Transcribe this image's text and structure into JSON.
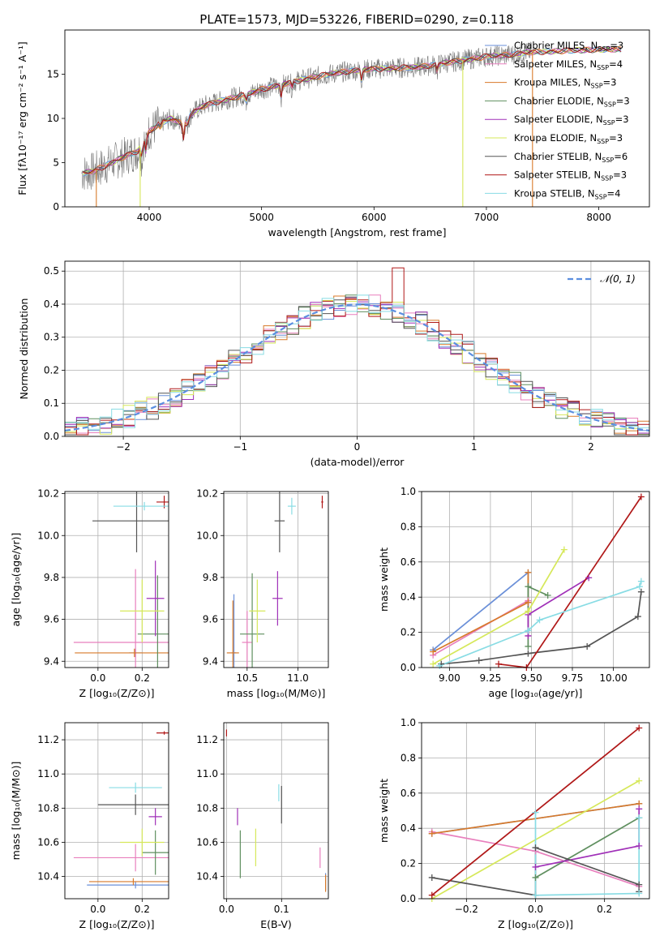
{
  "figure_title": "PLATE=1573, MJD=53226, FIBERID=0290, z=0.118",
  "colors": {
    "Chabrier MILES": "#6a8fd8",
    "Salpeter MILES": "#e87fbd",
    "Kroupa MILES": "#d87a2a",
    "Chabrier ELODIE": "#5f8f5f",
    "Salpeter ELODIE": "#a030b8",
    "Kroupa ELODIE": "#d6e85a",
    "Chabrier STELIB": "#555555",
    "Salpeter STELIB": "#b01818",
    "Kroupa STELIB": "#88dce4"
  },
  "chart_data": [
    {
      "type": "line",
      "id": "spectrum",
      "xlabel": "wavelength [Angstrom, rest frame]",
      "ylabel": "Flux [fλ10⁻¹⁷ erg cm⁻² s⁻¹ A⁻¹]",
      "xlim": [
        3250,
        8450
      ],
      "ylim": [
        0,
        20
      ],
      "xticks": [
        "4000",
        "5000",
        "6000",
        "7000",
        "8000"
      ],
      "yticks": [
        "0",
        "5",
        "10",
        "15"
      ],
      "legend_position": "right",
      "legend": [
        {
          "model": "Chabrier MILES",
          "label": "Chabrier MILES, N",
          "sub": "SSP",
          "val": "=3"
        },
        {
          "model": "Salpeter MILES",
          "label": "Salpeter MILES, N",
          "sub": "SSP",
          "val": "=4"
        },
        {
          "model": "Kroupa MILES",
          "label": "Kroupa MILES, N",
          "sub": "SSP",
          "val": "=3"
        },
        {
          "model": "Chabrier ELODIE",
          "label": "Chabrier ELODIE, N",
          "sub": "SSP",
          "val": "=3"
        },
        {
          "model": "Salpeter ELODIE",
          "label": "Salpeter ELODIE, N",
          "sub": "SSP",
          "val": "=3"
        },
        {
          "model": "Kroupa ELODIE",
          "label": "Kroupa ELODIE, N",
          "sub": "SSP",
          "val": "=3"
        },
        {
          "model": "Chabrier STELIB",
          "label": "Chabrier STELIB, N",
          "sub": "SSP",
          "val": "=6"
        },
        {
          "model": "Salpeter STELIB",
          "label": "Salpeter STELIB, N",
          "sub": "SSP",
          "val": "=3"
        },
        {
          "model": "Kroupa STELIB",
          "label": "Kroupa STELIB, N",
          "sub": "SSP",
          "val": "=4"
        }
      ],
      "continuum_knots": [
        [
          3400,
          3.8
        ],
        [
          3500,
          4.0
        ],
        [
          3600,
          4.6
        ],
        [
          3700,
          5.2
        ],
        [
          3800,
          5.8
        ],
        [
          3900,
          6.3
        ],
        [
          4000,
          8.5
        ],
        [
          4100,
          9.5
        ],
        [
          4200,
          10.0
        ],
        [
          4300,
          9.3
        ],
        [
          4400,
          10.8
        ],
        [
          4500,
          11.5
        ],
        [
          4700,
          12.2
        ],
        [
          4900,
          12.8
        ],
        [
          5000,
          13.3
        ],
        [
          5200,
          13.9
        ],
        [
          5400,
          14.5
        ],
        [
          5600,
          15.0
        ],
        [
          5800,
          15.4
        ],
        [
          6000,
          15.6
        ],
        [
          6200,
          15.7
        ],
        [
          6400,
          15.8
        ],
        [
          6600,
          16.2
        ],
        [
          6800,
          16.6
        ],
        [
          7000,
          17.0
        ],
        [
          7200,
          17.2
        ],
        [
          7400,
          17.5
        ],
        [
          7600,
          17.6
        ],
        [
          7800,
          17.7
        ],
        [
          8000,
          17.8
        ],
        [
          8200,
          17.8
        ]
      ],
      "absorption_lines": [
        [
          3934,
          -1.8
        ],
        [
          3969,
          -1.5
        ],
        [
          4102,
          -0.8
        ],
        [
          4304,
          -1.6
        ],
        [
          4341,
          -0.7
        ],
        [
          4861,
          -0.9
        ],
        [
          5175,
          -1.4
        ],
        [
          5270,
          -0.7
        ],
        [
          5890,
          -1.2
        ],
        [
          6563,
          -0.8
        ]
      ],
      "spikes": [
        [
          3530,
          "Kroupa MILES"
        ],
        [
          3920,
          "Kroupa ELODIE"
        ],
        [
          6790,
          "Kroupa ELODIE"
        ],
        [
          7410,
          "Kroupa MILES"
        ]
      ]
    },
    {
      "type": "bar",
      "id": "residual_histogram",
      "xlabel": "(data-model)/error",
      "ylabel": "Normed distribution",
      "xlim": [
        -2.5,
        2.5
      ],
      "ylim": [
        0,
        0.53
      ],
      "xticks": [
        "−2",
        "−1",
        "0",
        "1",
        "2"
      ],
      "yticks": [
        "0.0",
        "0.1",
        "0.2",
        "0.3",
        "0.4",
        "0.5"
      ],
      "bin_width": 0.1,
      "reference_curve": {
        "label": "𝒩(0, 1)",
        "type": "normal",
        "mean": 0,
        "sigma": 1
      },
      "legend_position": "top-right"
    },
    {
      "type": "scatter",
      "id": "age_vs_Z",
      "xlabel": "Z [log₁₀(Z/Z⊙)]",
      "ylabel": "age  [log₁₀(age/yr)]",
      "xlim": [
        -0.15,
        0.32
      ],
      "ylim": [
        9.37,
        10.21
      ],
      "xticks": [
        "0.0",
        "0.2"
      ],
      "yticks": [
        "9.4",
        "9.6",
        "9.8",
        "10.0",
        "10.2"
      ],
      "points": [
        {
          "model": "Chabrier MILES",
          "x": 0.17,
          "y": 9.44,
          "xerr": 0.03,
          "yerr": 0.02
        },
        {
          "model": "Salpeter MILES",
          "x": 0.17,
          "y": 9.49,
          "xerr": 0.28,
          "yerr": 0.35
        },
        {
          "model": "Kroupa MILES",
          "x": 0.165,
          "y": 9.44,
          "xerr": 0.27,
          "yerr": 0.02
        },
        {
          "model": "Chabrier ELODIE",
          "x": 0.27,
          "y": 9.53,
          "xerr": 0.09,
          "yerr": 0.28
        },
        {
          "model": "Salpeter ELODIE",
          "x": 0.26,
          "y": 9.7,
          "xerr": 0.04,
          "yerr": 0.18
        },
        {
          "model": "Kroupa ELODIE",
          "x": 0.2,
          "y": 9.64,
          "xerr": 0.1,
          "yerr": 0.15
        },
        {
          "model": "Chabrier STELIB",
          "x": 0.175,
          "y": 10.07,
          "xerr": 0.2,
          "yerr": 0.15
        },
        {
          "model": "Salpeter STELIB",
          "x": 0.3,
          "y": 10.16,
          "xerr": 0.035,
          "yerr": 0.03
        },
        {
          "model": "Kroupa STELIB",
          "x": 0.21,
          "y": 10.14,
          "xerr": 0.14,
          "yerr": 0.02
        }
      ]
    },
    {
      "type": "scatter",
      "id": "age_vs_mass",
      "xlabel": "mass [log₁₀(M/M⊙)]",
      "xlim": [
        10.27,
        11.3
      ],
      "ylim": [
        9.37,
        10.21
      ],
      "xticks": [
        "10.5",
        "11.0"
      ],
      "yticks": [
        "9.4",
        "9.6",
        "9.8",
        "10.0",
        "10.2"
      ],
      "points": [
        {
          "model": "Chabrier MILES",
          "x": 10.37,
          "y": 9.44,
          "xerr": 0.02,
          "yerr": 0.28
        },
        {
          "model": "Salpeter MILES",
          "x": 10.5,
          "y": 9.49,
          "xerr": 0.05,
          "yerr": 0.15
        },
        {
          "model": "Kroupa MILES",
          "x": 10.36,
          "y": 9.44,
          "xerr": 0.06,
          "yerr": 0.25
        },
        {
          "model": "Chabrier ELODIE",
          "x": 10.55,
          "y": 9.53,
          "xerr": 0.12,
          "yerr": 0.29
        },
        {
          "model": "Salpeter ELODIE",
          "x": 10.8,
          "y": 9.7,
          "xerr": 0.05,
          "yerr": 0.13
        },
        {
          "model": "Kroupa ELODIE",
          "x": 10.6,
          "y": 9.64,
          "xerr": 0.08,
          "yerr": 0.15
        },
        {
          "model": "Chabrier STELIB",
          "x": 10.82,
          "y": 10.07,
          "xerr": 0.05,
          "yerr": 0.15
        },
        {
          "model": "Salpeter STELIB",
          "x": 11.24,
          "y": 10.16,
          "xerr": 0.01,
          "yerr": 0.03
        },
        {
          "model": "Kroupa STELIB",
          "x": 10.94,
          "y": 10.14,
          "xerr": 0.04,
          "yerr": 0.04
        }
      ]
    },
    {
      "type": "line",
      "id": "weight_vs_age",
      "xlabel": "age  [log₁₀(age/yr)]",
      "ylabel": "mass weight",
      "xlim": [
        8.83,
        10.22
      ],
      "ylim": [
        0,
        1.0
      ],
      "xticks": [
        "9.00",
        "9.25",
        "9.50",
        "9.75",
        "10.00"
      ],
      "yticks": [
        "0.0",
        "0.2",
        "0.4",
        "0.6",
        "0.8",
        "1.0"
      ],
      "series": [
        {
          "model": "Chabrier MILES",
          "x": [
            8.9,
            9.48,
            9.48
          ],
          "y": [
            0.1,
            0.54,
            0.37
          ]
        },
        {
          "model": "Salpeter MILES",
          "x": [
            8.9,
            9.48,
            9.48,
            9.48
          ],
          "y": [
            0.07,
            0.38,
            0.37,
            0.18
          ]
        },
        {
          "model": "Kroupa MILES",
          "x": [
            8.9,
            9.48,
            9.48
          ],
          "y": [
            0.09,
            0.37,
            0.54
          ]
        },
        {
          "model": "Chabrier ELODIE",
          "x": [
            9.48,
            9.48,
            9.6
          ],
          "y": [
            0.12,
            0.46,
            0.41
          ]
        },
        {
          "model": "Salpeter ELODIE",
          "x": [
            9.48,
            9.48,
            9.85
          ],
          "y": [
            0.18,
            0.3,
            0.51
          ]
        },
        {
          "model": "Kroupa ELODIE",
          "x": [
            8.9,
            9.48,
            9.7
          ],
          "y": [
            0.02,
            0.32,
            0.67
          ]
        },
        {
          "model": "Chabrier STELIB",
          "x": [
            8.95,
            9.18,
            9.48,
            9.84,
            10.15,
            10.17
          ],
          "y": [
            0.02,
            0.04,
            0.08,
            0.12,
            0.29,
            0.43
          ]
        },
        {
          "model": "Salpeter STELIB",
          "x": [
            9.3,
            9.47,
            10.17
          ],
          "y": [
            0.02,
            0.0,
            0.97
          ]
        },
        {
          "model": "Kroupa STELIB",
          "x": [
            8.94,
            9.48,
            9.55,
            10.16,
            10.17
          ],
          "y": [
            0.01,
            0.21,
            0.27,
            0.46,
            0.49
          ]
        }
      ]
    },
    {
      "type": "scatter",
      "id": "mass_vs_Z",
      "xlabel": "Z [log₁₀(Z/Z⊙)]",
      "ylabel": "mass [log₁₀(M/M⊙)]",
      "xlim": [
        -0.15,
        0.32
      ],
      "ylim": [
        10.27,
        11.3
      ],
      "xticks": [
        "0.0",
        "0.2"
      ],
      "yticks": [
        "10.4",
        "10.6",
        "10.8",
        "11.0",
        "11.2"
      ],
      "points": [
        {
          "model": "Chabrier MILES",
          "x": 0.17,
          "y": 10.35,
          "xerr": 0.22,
          "yerr": 0.02
        },
        {
          "model": "Salpeter MILES",
          "x": 0.17,
          "y": 10.51,
          "xerr": 0.28,
          "yerr": 0.08
        },
        {
          "model": "Kroupa MILES",
          "x": 0.16,
          "y": 10.37,
          "xerr": 0.2,
          "yerr": 0.02
        },
        {
          "model": "Chabrier ELODIE",
          "x": 0.26,
          "y": 10.54,
          "xerr": 0.06,
          "yerr": 0.13
        },
        {
          "model": "Salpeter ELODIE",
          "x": 0.26,
          "y": 10.75,
          "xerr": 0.03,
          "yerr": 0.05
        },
        {
          "model": "Kroupa ELODIE",
          "x": 0.2,
          "y": 10.6,
          "xerr": 0.1,
          "yerr": 0.08
        },
        {
          "model": "Chabrier STELIB",
          "x": 0.17,
          "y": 10.82,
          "xerr": 0.17,
          "yerr": 0.06
        },
        {
          "model": "Salpeter STELIB",
          "x": 0.3,
          "y": 11.24,
          "xerr": 0.035,
          "yerr": 0.01
        },
        {
          "model": "Kroupa STELIB",
          "x": 0.17,
          "y": 10.92,
          "xerr": 0.12,
          "yerr": 0.03
        }
      ]
    },
    {
      "type": "scatter",
      "id": "mass_vs_ebv",
      "xlabel": "E(B-V)",
      "xlim": [
        -0.005,
        0.185
      ],
      "ylim": [
        10.27,
        11.3
      ],
      "xticks": [
        "0.0",
        "0.1"
      ],
      "yticks": [
        "10.4",
        "10.6",
        "10.8",
        "11.0",
        "11.2"
      ],
      "points": [
        {
          "model": "Chabrier MILES",
          "x": 0.18,
          "y": 10.37,
          "xerr": 0,
          "yerr": 0.05
        },
        {
          "model": "Salpeter MILES",
          "x": 0.17,
          "y": 10.51,
          "xerr": 0,
          "yerr": 0.06
        },
        {
          "model": "Kroupa MILES",
          "x": 0.18,
          "y": 10.36,
          "xerr": 0,
          "yerr": 0.05
        },
        {
          "model": "Chabrier ELODIE",
          "x": 0.025,
          "y": 10.53,
          "xerr": 0,
          "yerr": 0.14
        },
        {
          "model": "Salpeter ELODIE",
          "x": 0.02,
          "y": 10.75,
          "xerr": 0,
          "yerr": 0.05
        },
        {
          "model": "Kroupa ELODIE",
          "x": 0.053,
          "y": 10.57,
          "xerr": 0,
          "yerr": 0.11
        },
        {
          "model": "Chabrier STELIB",
          "x": 0.1,
          "y": 10.82,
          "xerr": 0,
          "yerr": 0.11
        },
        {
          "model": "Salpeter STELIB",
          "x": 0.0,
          "y": 11.24,
          "xerr": 0,
          "yerr": 0.02
        },
        {
          "model": "Kroupa STELIB",
          "x": 0.095,
          "y": 10.89,
          "xerr": 0,
          "yerr": 0.05
        }
      ]
    },
    {
      "type": "line",
      "id": "weight_vs_Z",
      "xlabel": "Z [log₁₀(Z/Z⊙)]",
      "ylabel": "mass weight",
      "xlim": [
        -0.33,
        0.33
      ],
      "ylim": [
        0,
        1.0
      ],
      "xticks": [
        "−0.2",
        "0.0",
        "0.2"
      ],
      "yticks": [
        "0.0",
        "0.2",
        "0.4",
        "0.6",
        "0.8",
        "1.0"
      ],
      "series": [
        {
          "model": "Chabrier MILES",
          "x": [
            -0.3,
            0.3
          ],
          "y": [
            0.37,
            0.54
          ]
        },
        {
          "model": "Salpeter MILES",
          "x": [
            -0.3,
            0.0,
            0.3
          ],
          "y": [
            0.38,
            0.27,
            0.07
          ]
        },
        {
          "model": "Kroupa MILES",
          "x": [
            -0.3,
            0.3
          ],
          "y": [
            0.37,
            0.54
          ]
        },
        {
          "model": "Chabrier ELODIE",
          "x": [
            0.0,
            0.3
          ],
          "y": [
            0.12,
            0.46
          ]
        },
        {
          "model": "Salpeter ELODIE",
          "x": [
            0.0,
            0.3,
            0.3
          ],
          "y": [
            0.18,
            0.3,
            0.51
          ]
        },
        {
          "model": "Kroupa ELODIE",
          "x": [
            -0.3,
            0.3
          ],
          "y": [
            0.0,
            0.67
          ]
        },
        {
          "model": "Chabrier STELIB",
          "x": [
            -0.3,
            0.0,
            0.0,
            0.3,
            0.3
          ],
          "y": [
            0.12,
            0.02,
            0.29,
            0.08,
            0.04
          ]
        },
        {
          "model": "Salpeter STELIB",
          "x": [
            -0.3,
            0.3
          ],
          "y": [
            0.02,
            0.97
          ]
        },
        {
          "model": "Kroupa STELIB",
          "x": [
            0.0,
            0.0,
            0.3,
            0.3
          ],
          "y": [
            0.49,
            0.02,
            0.03,
            0.46
          ]
        }
      ]
    }
  ]
}
